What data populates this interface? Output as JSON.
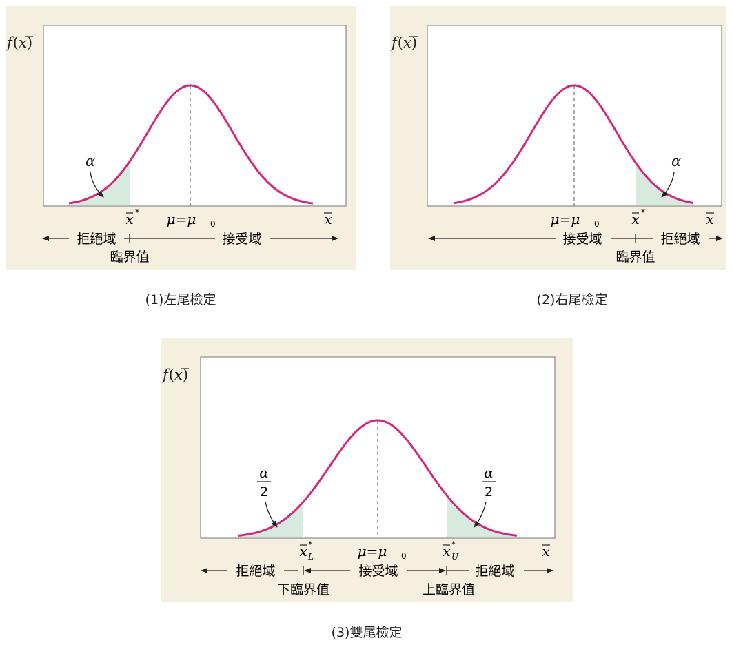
{
  "colors": {
    "panel_background": "#f5efdf",
    "curve": "#d6247f",
    "shade": "#d6eade",
    "frame": "#7a7a7a",
    "text": "#231f20"
  },
  "panels": [
    {
      "caption": "(1)左尾檢定",
      "ylabel_f": "f",
      "ylabel_arg": "x",
      "alpha": "α",
      "crit": "x",
      "star": "*",
      "mu": "μ=μ",
      "mu_sub": "0",
      "xaxis": "x",
      "reject": "拒絕域",
      "accept": "接受域",
      "critlabel": "臨界值"
    },
    {
      "caption": "(2)右尾檢定",
      "ylabel_f": "f",
      "ylabel_arg": "x",
      "alpha": "α",
      "crit": "x",
      "star": "*",
      "mu": "μ=μ",
      "mu_sub": "0",
      "xaxis": "x",
      "reject": "拒絕域",
      "accept": "接受域",
      "critlabel": "臨界值"
    },
    {
      "caption": "(3)雙尾檢定",
      "ylabel_f": "f",
      "ylabel_arg": "x",
      "alpha_num": "α",
      "alpha_den": "2",
      "crit_l": "x",
      "crit_l_sub": "L",
      "crit_u": "x",
      "crit_u_sub": "U",
      "star": "*",
      "mu": "μ=μ",
      "mu_sub": "0",
      "xaxis": "x",
      "reject": "拒絕域",
      "accept": "接受域",
      "lower_crit": "下臨界值",
      "upper_crit": "上臨界值"
    }
  ]
}
